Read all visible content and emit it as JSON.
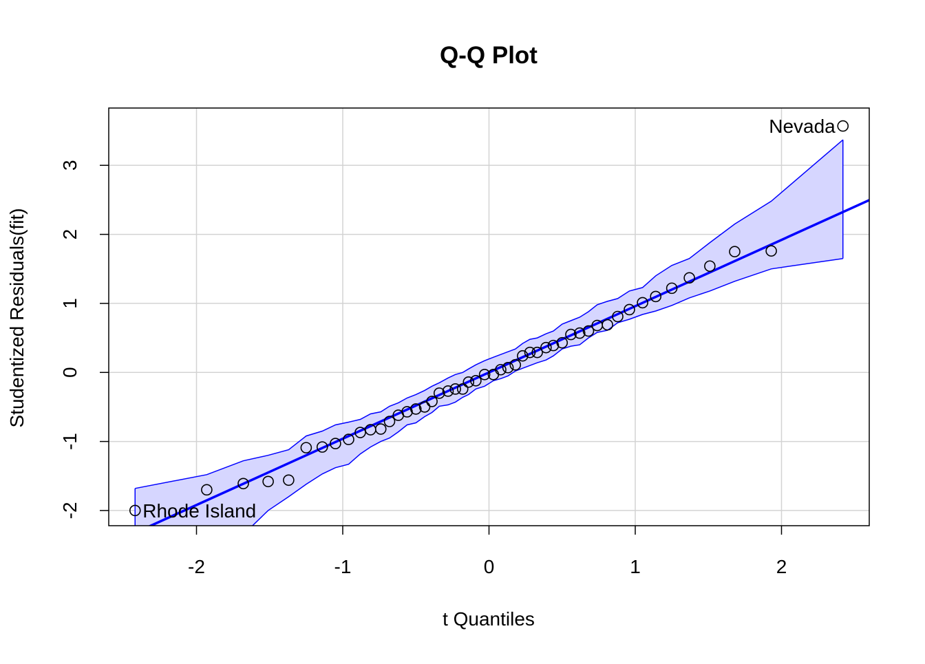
{
  "chart_data": {
    "type": "scatter",
    "title": "Q-Q Plot",
    "xlabel": "t Quantiles",
    "ylabel": "Studentized Residuals(fit)",
    "xlim": [
      -2.6,
      2.6
    ],
    "ylim": [
      -2.22,
      3.83
    ],
    "grid": true,
    "x_ticks": [
      -2,
      -1,
      0,
      1,
      2
    ],
    "y_ticks": [
      -2,
      -1,
      0,
      1,
      2,
      3
    ],
    "colors": {
      "line": "#0000ff",
      "band_fill": "#d6d6ff",
      "band_stroke": "#0000ff",
      "points": "#000000",
      "grid": "#d3d3d3"
    },
    "reference_line": {
      "intercept": 0.0,
      "slope": 0.96
    },
    "points": [
      {
        "x": -2.42,
        "y": -2.0,
        "label": "Rhode Island"
      },
      {
        "x": -1.93,
        "y": -1.7
      },
      {
        "x": -1.68,
        "y": -1.61
      },
      {
        "x": -1.51,
        "y": -1.58
      },
      {
        "x": -1.37,
        "y": -1.56
      },
      {
        "x": -1.25,
        "y": -1.09
      },
      {
        "x": -1.14,
        "y": -1.08
      },
      {
        "x": -1.05,
        "y": -1.03
      },
      {
        "x": -0.96,
        "y": -0.97
      },
      {
        "x": -0.88,
        "y": -0.87
      },
      {
        "x": -0.81,
        "y": -0.83
      },
      {
        "x": -0.74,
        "y": -0.82
      },
      {
        "x": -0.68,
        "y": -0.71
      },
      {
        "x": -0.62,
        "y": -0.62
      },
      {
        "x": -0.56,
        "y": -0.57
      },
      {
        "x": -0.5,
        "y": -0.53
      },
      {
        "x": -0.44,
        "y": -0.5
      },
      {
        "x": -0.39,
        "y": -0.42
      },
      {
        "x": -0.34,
        "y": -0.3
      },
      {
        "x": -0.28,
        "y": -0.27
      },
      {
        "x": -0.23,
        "y": -0.24
      },
      {
        "x": -0.18,
        "y": -0.24
      },
      {
        "x": -0.14,
        "y": -0.14
      },
      {
        "x": -0.09,
        "y": -0.12
      },
      {
        "x": -0.03,
        "y": -0.03
      },
      {
        "x": 0.03,
        "y": -0.03
      },
      {
        "x": 0.08,
        "y": 0.04
      },
      {
        "x": 0.13,
        "y": 0.07
      },
      {
        "x": 0.18,
        "y": 0.11
      },
      {
        "x": 0.23,
        "y": 0.24
      },
      {
        "x": 0.28,
        "y": 0.29
      },
      {
        "x": 0.33,
        "y": 0.29
      },
      {
        "x": 0.39,
        "y": 0.36
      },
      {
        "x": 0.44,
        "y": 0.39
      },
      {
        "x": 0.5,
        "y": 0.43
      },
      {
        "x": 0.56,
        "y": 0.55
      },
      {
        "x": 0.62,
        "y": 0.57
      },
      {
        "x": 0.68,
        "y": 0.6
      },
      {
        "x": 0.74,
        "y": 0.68
      },
      {
        "x": 0.81,
        "y": 0.69
      },
      {
        "x": 0.88,
        "y": 0.81
      },
      {
        "x": 0.96,
        "y": 0.91
      },
      {
        "x": 1.05,
        "y": 1.01
      },
      {
        "x": 1.14,
        "y": 1.1
      },
      {
        "x": 1.25,
        "y": 1.22
      },
      {
        "x": 1.37,
        "y": 1.37
      },
      {
        "x": 1.51,
        "y": 1.54
      },
      {
        "x": 1.68,
        "y": 1.75
      },
      {
        "x": 1.93,
        "y": 1.76
      },
      {
        "x": 2.42,
        "y": 3.57,
        "label": "Nevada"
      }
    ],
    "confidence_band": {
      "x": [
        -2.42,
        -1.93,
        -1.68,
        -1.51,
        -1.37,
        -1.25,
        -1.14,
        -1.05,
        -0.96,
        -0.88,
        -0.81,
        -0.74,
        -0.68,
        -0.62,
        -0.56,
        -0.5,
        -0.44,
        -0.39,
        -0.34,
        -0.28,
        -0.23,
        -0.18,
        -0.14,
        -0.09,
        -0.03,
        0.03,
        0.08,
        0.13,
        0.18,
        0.23,
        0.28,
        0.33,
        0.39,
        0.44,
        0.5,
        0.56,
        0.62,
        0.68,
        0.74,
        0.81,
        0.88,
        0.96,
        1.05,
        1.14,
        1.25,
        1.37,
        1.51,
        1.68,
        1.93,
        2.42
      ],
      "upper": [
        -1.68,
        -1.48,
        -1.28,
        -1.2,
        -1.12,
        -0.92,
        -0.85,
        -0.76,
        -0.72,
        -0.68,
        -0.6,
        -0.57,
        -0.49,
        -0.44,
        -0.37,
        -0.32,
        -0.26,
        -0.2,
        -0.15,
        -0.08,
        -0.03,
        0.0,
        0.05,
        0.11,
        0.17,
        0.22,
        0.26,
        0.3,
        0.34,
        0.42,
        0.48,
        0.5,
        0.56,
        0.6,
        0.7,
        0.75,
        0.8,
        0.88,
        0.98,
        1.03,
        1.07,
        1.18,
        1.23,
        1.4,
        1.55,
        1.65,
        1.88,
        2.15,
        2.48,
        3.37
      ],
      "lower": [
        -2.35,
        -2.35,
        -2.35,
        -2.0,
        -1.8,
        -1.62,
        -1.47,
        -1.38,
        -1.33,
        -1.18,
        -1.08,
        -1.0,
        -0.95,
        -0.86,
        -0.76,
        -0.73,
        -0.64,
        -0.58,
        -0.49,
        -0.47,
        -0.43,
        -0.36,
        -0.32,
        -0.24,
        -0.2,
        -0.12,
        -0.09,
        -0.05,
        0.02,
        0.06,
        0.1,
        0.14,
        0.18,
        0.24,
        0.34,
        0.38,
        0.4,
        0.5,
        0.58,
        0.61,
        0.72,
        0.77,
        0.84,
        0.89,
        0.97,
        1.08,
        1.18,
        1.32,
        1.5,
        1.65
      ]
    }
  }
}
